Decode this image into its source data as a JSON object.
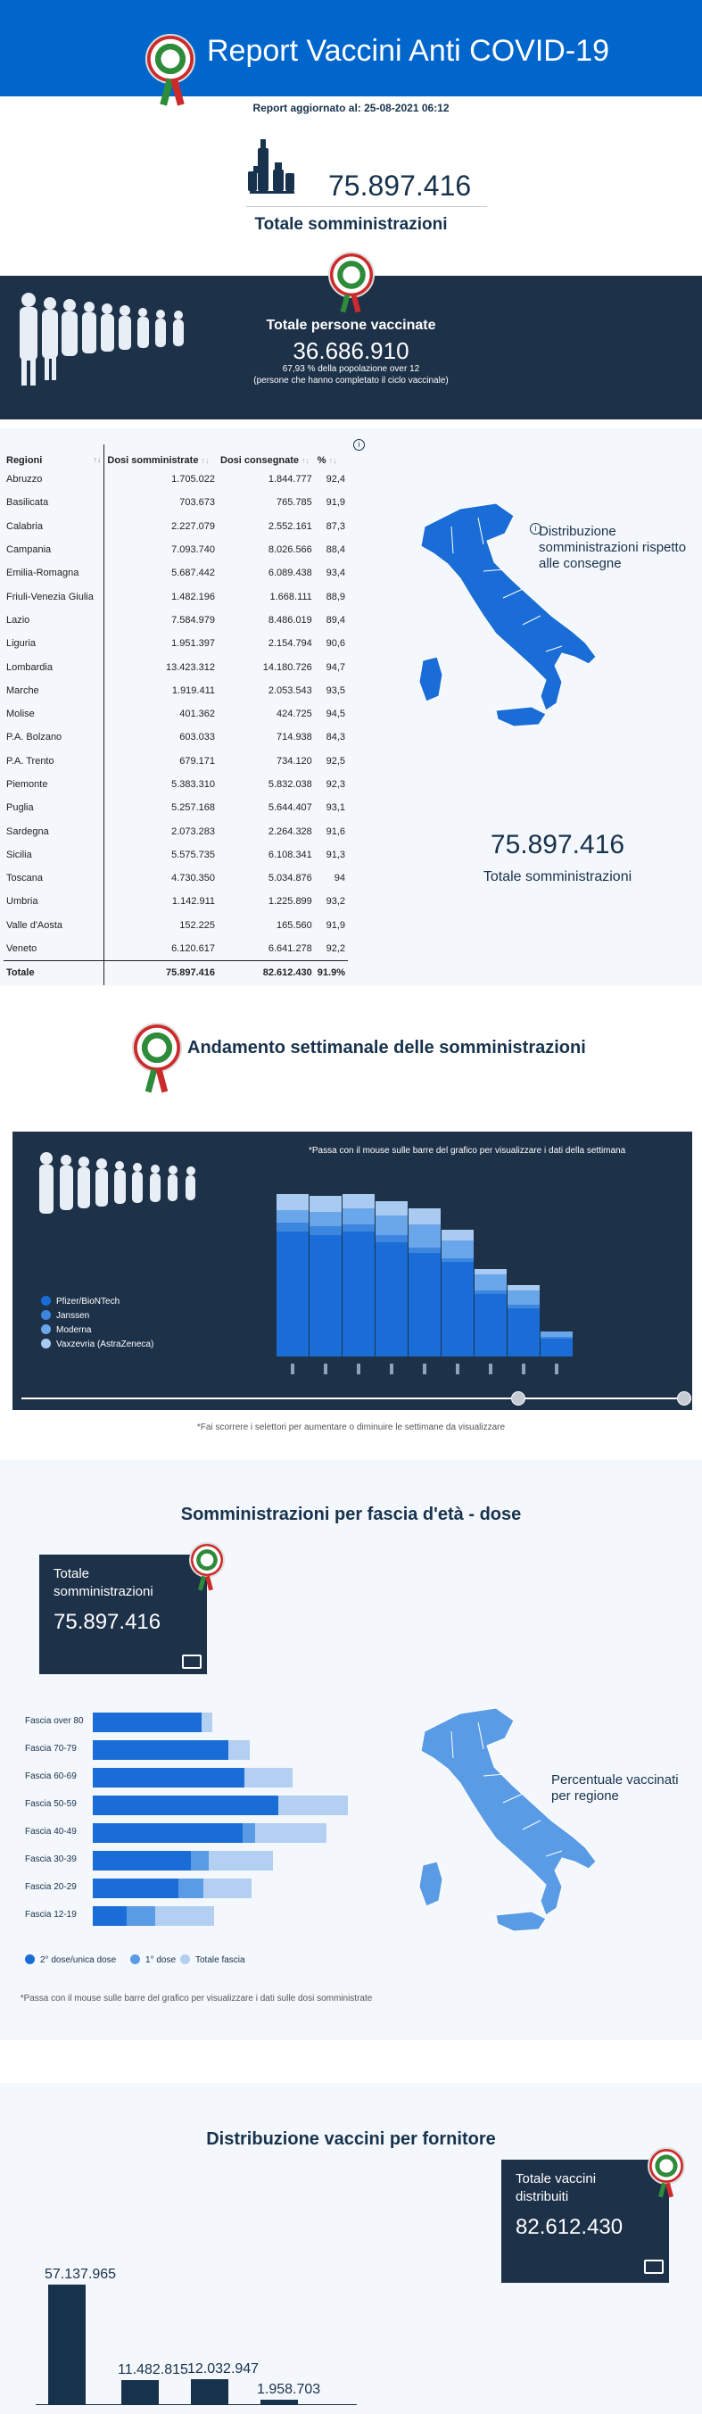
{
  "header": {
    "title": "Report Vaccini Anti COVID-19",
    "updated": "Report aggiornato al: 25-08-2021 06:12"
  },
  "totals": {
    "administered": "75.897.416",
    "administered_label": "Totale somministrazioni"
  },
  "vaccinated": {
    "title": "Totale persone vaccinate",
    "count": "36.686.910",
    "percent_line": "67,93 % della popolazione over 12",
    "note": "(persone che hanno completato il ciclo vaccinale)"
  },
  "regions_table": {
    "headers": [
      "Regioni",
      "Dosi somministrate",
      "Dosi consegnate",
      "%"
    ],
    "rows": [
      [
        "Abruzzo",
        "1.705.022",
        "1.844.777",
        "92,4"
      ],
      [
        "Basilicata",
        "703.673",
        "765.785",
        "91,9"
      ],
      [
        "Calabria",
        "2.227.079",
        "2.552.161",
        "87,3"
      ],
      [
        "Campania",
        "7.093.740",
        "8.026.566",
        "88,4"
      ],
      [
        "Emilia-Romagna",
        "5.687.442",
        "6.089.438",
        "93,4"
      ],
      [
        "Friuli-Venezia Giulia",
        "1.482.196",
        "1.668.111",
        "88,9"
      ],
      [
        "Lazio",
        "7.584.979",
        "8.486.019",
        "89,4"
      ],
      [
        "Liguria",
        "1.951.397",
        "2.154.794",
        "90,6"
      ],
      [
        "Lombardia",
        "13.423.312",
        "14.180.726",
        "94,7"
      ],
      [
        "Marche",
        "1.919.411",
        "2.053.543",
        "93,5"
      ],
      [
        "Molise",
        "401.362",
        "424.725",
        "94,5"
      ],
      [
        "P.A. Bolzano",
        "603.033",
        "714.938",
        "84,3"
      ],
      [
        "P.A. Trento",
        "679.171",
        "734.120",
        "92,5"
      ],
      [
        "Piemonte",
        "5.383.310",
        "5.832.038",
        "92,3"
      ],
      [
        "Puglia",
        "5.257.168",
        "5.644.407",
        "93,1"
      ],
      [
        "Sardegna",
        "2.073.283",
        "2.264.328",
        "91,6"
      ],
      [
        "Sicilia",
        "5.575.735",
        "6.108.341",
        "91,3"
      ],
      [
        "Toscana",
        "4.730.350",
        "5.034.876",
        "94"
      ],
      [
        "Umbria",
        "1.142.911",
        "1.225.899",
        "93,2"
      ],
      [
        "Valle d'Aosta",
        "152.225",
        "165.560",
        "91,9"
      ],
      [
        "Veneto",
        "6.120.617",
        "6.641.278",
        "92,2"
      ]
    ],
    "total": [
      "Totale",
      "75.897.416",
      "82.612.430",
      "91.9%"
    ]
  },
  "map1": {
    "label": "Distribuzione somministrazioni rispetto alle consegne",
    "total": "75.897.416",
    "total_label": "Totale somministrazioni"
  },
  "weekly": {
    "title": "Andamento settimanale delle somministrazioni",
    "hint": "*Passa con il mouse sulle barre del grafico per visualizzare i dati della settimana",
    "legend": [
      "Pfizer/BioNTech",
      "Janssen",
      "Moderna",
      "Vaxzevria (AstraZeneca)"
    ],
    "note": "*Fai scorrere i selettori per aumentare o diminuire le settimane da visualizzare",
    "colors": [
      "#1a6dd6",
      "#3d86e0",
      "#6aa7ea",
      "#a9cbf2"
    ]
  },
  "age": {
    "title": "Somministrazioni per fascia d'età - dose",
    "box_label": "Totale somministrazioni",
    "box_value": "75.897.416",
    "bands": [
      "Fascia over 80",
      "Fascia 70-79",
      "Fascia 60-69",
      "Fascia 50-59",
      "Fascia 40-49",
      "Fascia 30-39",
      "Fascia 20-29",
      "Fascia 12-19"
    ],
    "legend": [
      "2° dose/unica dose",
      "1° dose",
      "Totale fascia"
    ],
    "hint": "*Passa con il mouse sulle barre del grafico per visualizzare i dati sulle dosi somministrate",
    "map_label": "Percentuale vaccinati per regione",
    "colors": [
      "#1a6dd6",
      "#5a9be6",
      "#b3d0f3"
    ]
  },
  "suppliers": {
    "title": "Distribuzione vaccini per fornitore",
    "box_label": "Totale vaccini distribuiti",
    "box_value": "82.612.430",
    "values": [
      "57.137.965",
      "11.482.815",
      "12.032.947",
      "1.958.703"
    ],
    "amounts": [
      57137965,
      11482815,
      12032947,
      1958703
    ]
  }
}
